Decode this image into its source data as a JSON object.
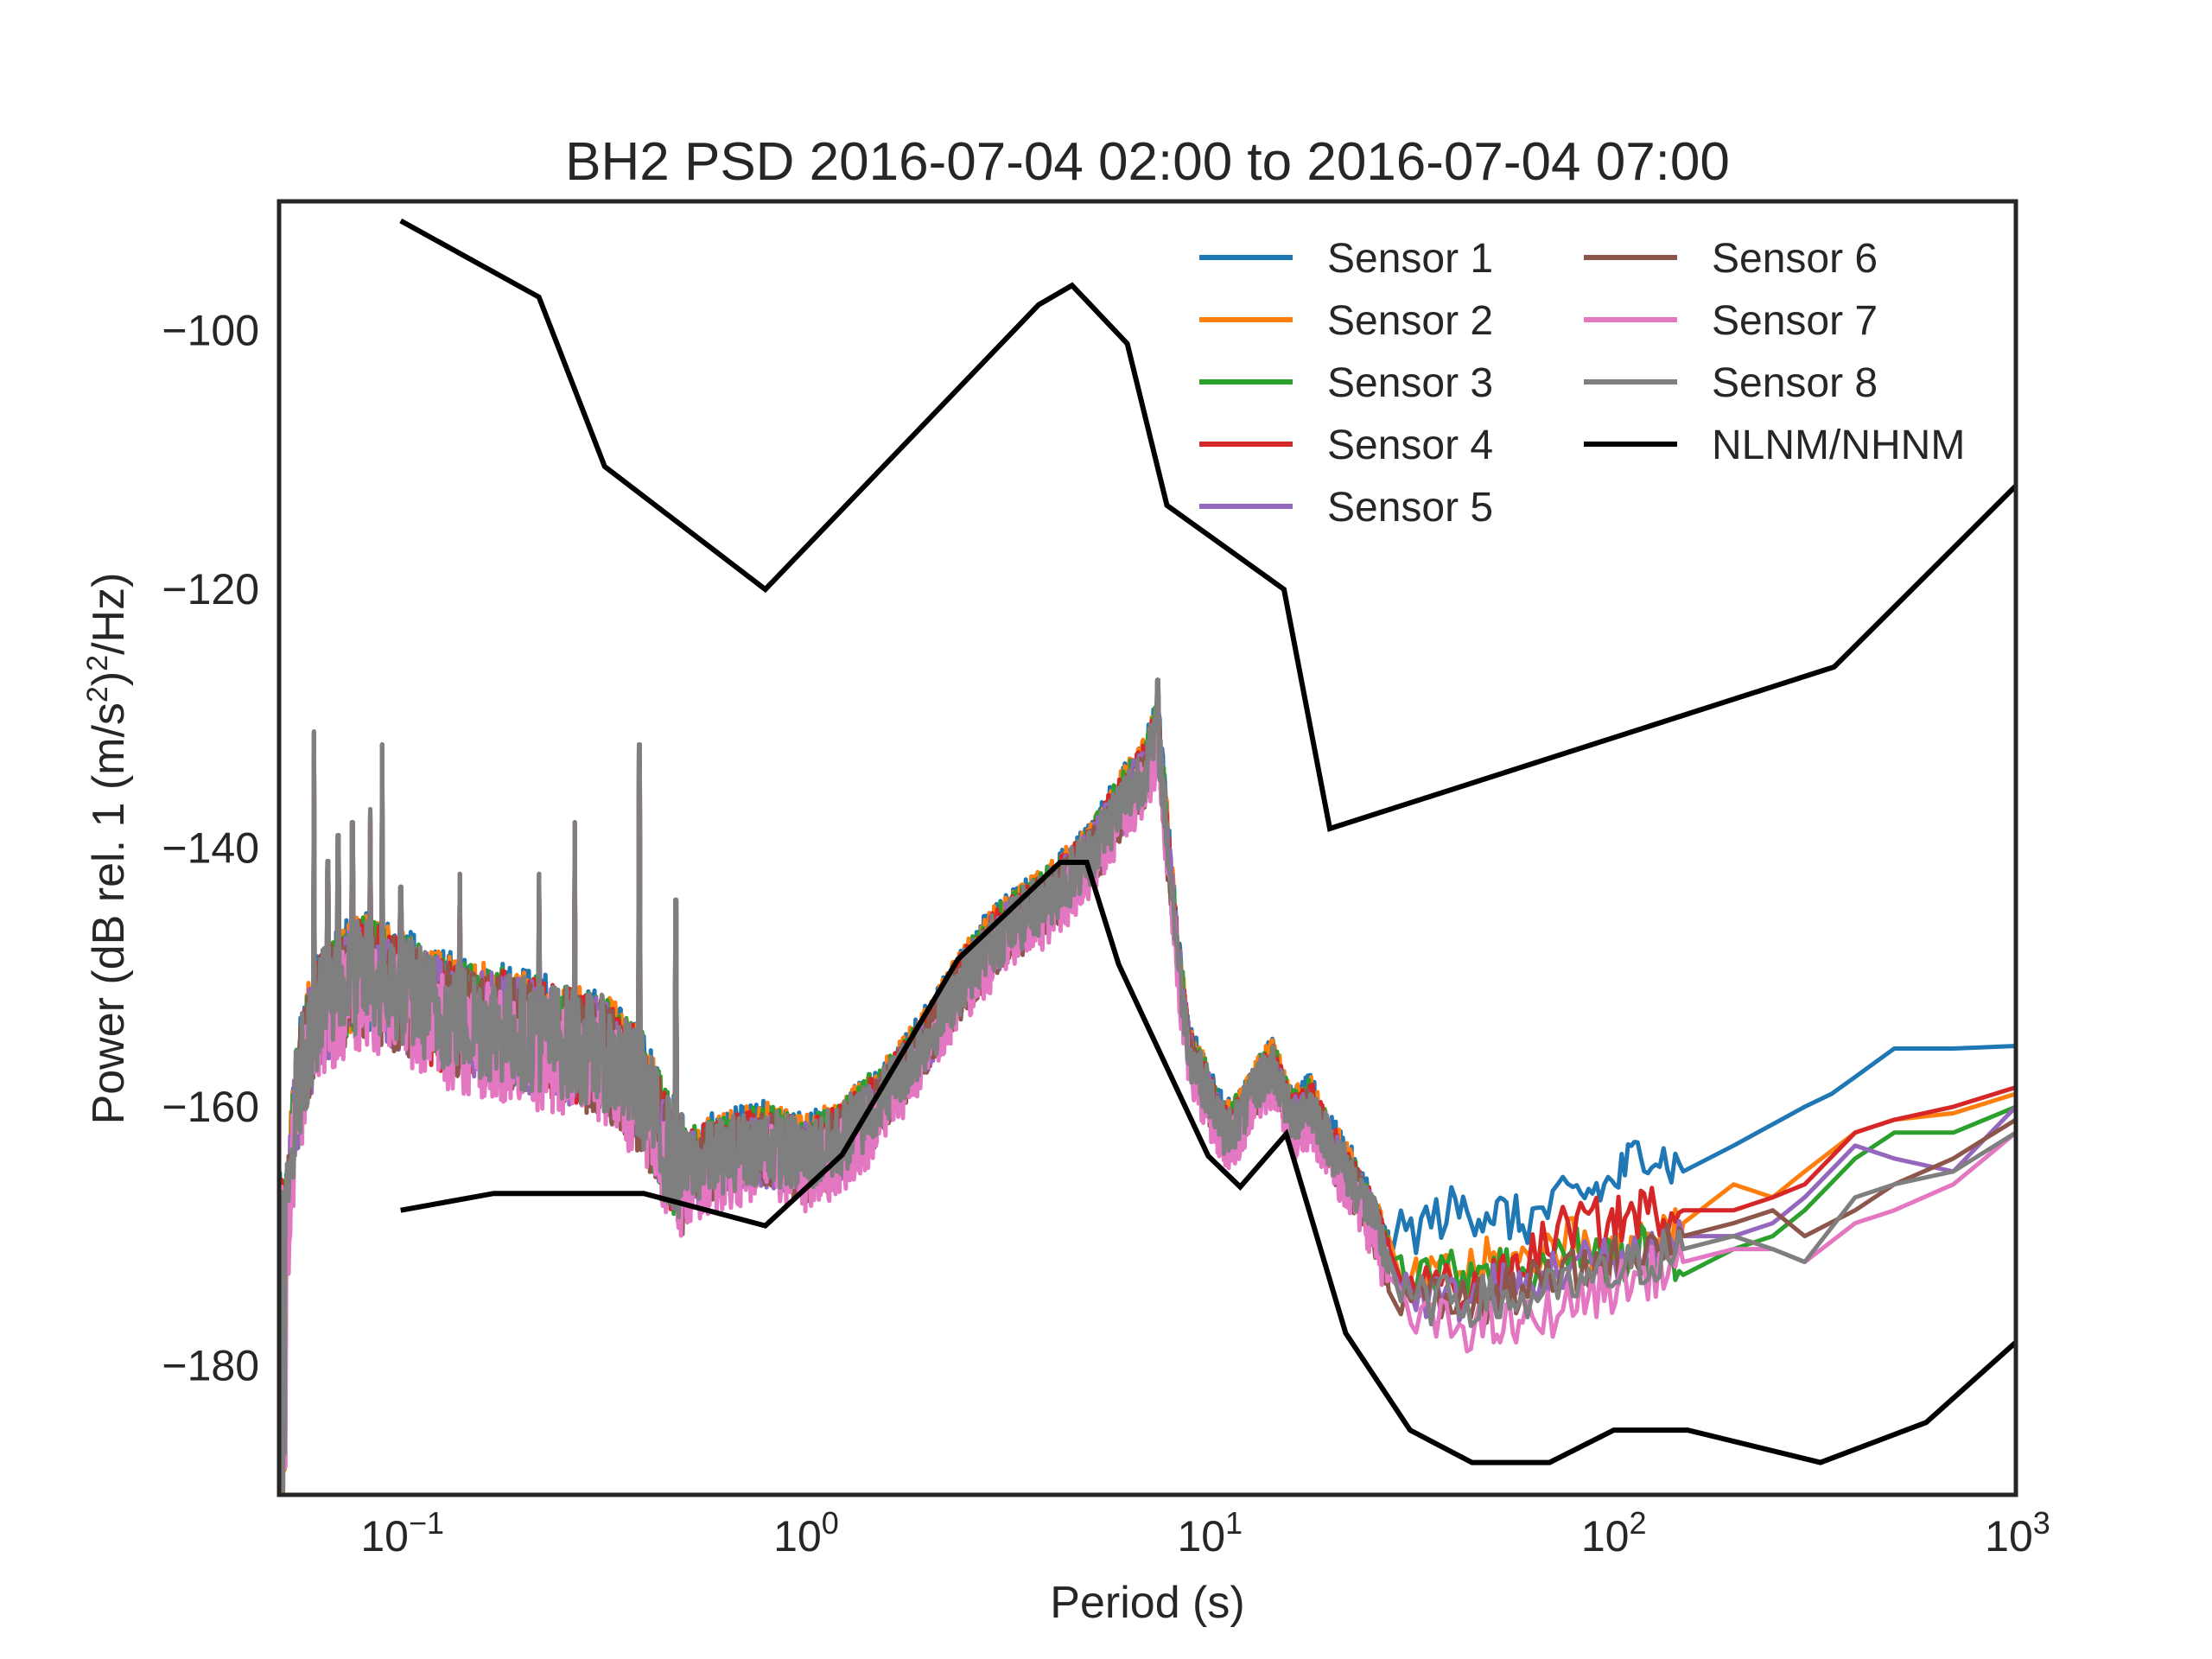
{
  "chart_data": {
    "type": "line",
    "title": "BH2 PSD 2016-07-04 02:00 to 2016-07-04 07:00",
    "xlabel": "Period (s)",
    "ylabel": "Power (dB rel. 1 (m/s²)²/Hz)",
    "x_scale": "log",
    "xlim": [
      0.05,
      1000
    ],
    "ylim": [
      -190,
      -90
    ],
    "x_ticks": [
      {
        "value": 0.1,
        "base": "10",
        "exp": "−1"
      },
      {
        "value": 1,
        "base": "10",
        "exp": "0"
      },
      {
        "value": 10,
        "base": "10",
        "exp": "1"
      },
      {
        "value": 100,
        "base": "10",
        "exp": "2"
      },
      {
        "value": 1000,
        "base": "10",
        "exp": "3"
      }
    ],
    "y_ticks": [
      {
        "value": -100,
        "label": "−100"
      },
      {
        "value": -120,
        "label": "−120"
      },
      {
        "value": -140,
        "label": "−140"
      },
      {
        "value": -160,
        "label": "−160"
      },
      {
        "value": -180,
        "label": "−180"
      }
    ],
    "grid": false,
    "legend": {
      "placement": "top-right",
      "columns": 2
    },
    "series": [
      {
        "name": "Sensor 1",
        "color": "#1f77b4",
        "offset": 0.6,
        "tail": [
          [
            30,
            -170
          ],
          [
            40,
            -168
          ],
          [
            50,
            -168
          ],
          [
            60,
            -169
          ],
          [
            80,
            -167
          ],
          [
            100,
            -166
          ],
          [
            120,
            -163
          ],
          [
            150,
            -165
          ],
          [
            200,
            -163
          ],
          [
            300,
            -160
          ],
          [
            350,
            -159
          ],
          [
            500,
            -155.5
          ],
          [
            700,
            -155.5
          ],
          [
            1000,
            -155.3
          ]
        ]
      },
      {
        "name": "Sensor 2",
        "color": "#ff7f0e",
        "offset": 0.4,
        "tail": [
          [
            30,
            -174
          ],
          [
            40,
            -173
          ],
          [
            50,
            -172
          ],
          [
            60,
            -172
          ],
          [
            80,
            -170
          ],
          [
            100,
            -172
          ],
          [
            120,
            -170
          ],
          [
            150,
            -169
          ],
          [
            200,
            -166
          ],
          [
            250,
            -167
          ],
          [
            300,
            -165
          ],
          [
            400,
            -162
          ],
          [
            500,
            -161
          ],
          [
            700,
            -160.5
          ],
          [
            1000,
            -159
          ]
        ]
      },
      {
        "name": "Sensor 3",
        "color": "#2ca02c",
        "offset": 0.2,
        "tail": [
          [
            30,
            -172
          ],
          [
            40,
            -173
          ],
          [
            50,
            -172
          ],
          [
            60,
            -173
          ],
          [
            80,
            -171
          ],
          [
            100,
            -172
          ],
          [
            120,
            -171
          ],
          [
            150,
            -173
          ],
          [
            200,
            -171
          ],
          [
            250,
            -170
          ],
          [
            300,
            -168
          ],
          [
            400,
            -164
          ],
          [
            500,
            -162
          ],
          [
            700,
            -162
          ],
          [
            1000,
            -160
          ]
        ]
      },
      {
        "name": "Sensor 4",
        "color": "#d62728",
        "offset": 0.0,
        "tail": [
          [
            30,
            -173
          ],
          [
            40,
            -174
          ],
          [
            50,
            -174
          ],
          [
            60,
            -172
          ],
          [
            80,
            -169
          ],
          [
            100,
            -169
          ],
          [
            120,
            -168
          ],
          [
            150,
            -168
          ],
          [
            200,
            -168
          ],
          [
            250,
            -167
          ],
          [
            300,
            -166
          ],
          [
            400,
            -162
          ],
          [
            500,
            -161
          ],
          [
            700,
            -160
          ],
          [
            1000,
            -158.5
          ]
        ]
      },
      {
        "name": "Sensor 5",
        "color": "#9467bd",
        "offset": -0.2,
        "tail": [
          [
            30,
            -174
          ],
          [
            40,
            -175
          ],
          [
            50,
            -174
          ],
          [
            60,
            -174
          ],
          [
            80,
            -172
          ],
          [
            100,
            -172
          ],
          [
            120,
            -171
          ],
          [
            150,
            -170
          ],
          [
            200,
            -170
          ],
          [
            250,
            -169
          ],
          [
            300,
            -167
          ],
          [
            400,
            -163
          ],
          [
            500,
            -164
          ],
          [
            700,
            -165
          ],
          [
            1000,
            -160
          ]
        ]
      },
      {
        "name": "Sensor 6",
        "color": "#8c564b",
        "offset": -0.4,
        "tail": [
          [
            30,
            -175
          ],
          [
            40,
            -175
          ],
          [
            50,
            -175
          ],
          [
            60,
            -174
          ],
          [
            80,
            -173
          ],
          [
            100,
            -172
          ],
          [
            120,
            -171
          ],
          [
            150,
            -170
          ],
          [
            200,
            -169
          ],
          [
            250,
            -168
          ],
          [
            300,
            -170
          ],
          [
            400,
            -168
          ],
          [
            500,
            -166
          ],
          [
            700,
            -164
          ],
          [
            1000,
            -161
          ]
        ]
      },
      {
        "name": "Sensor 7",
        "color": "#e377c2",
        "offset": -1.2,
        "tail": [
          [
            30,
            -176
          ],
          [
            40,
            -177
          ],
          [
            50,
            -177
          ],
          [
            60,
            -177
          ],
          [
            80,
            -175
          ],
          [
            100,
            -174
          ],
          [
            120,
            -173
          ],
          [
            150,
            -172
          ],
          [
            200,
            -171
          ],
          [
            250,
            -171
          ],
          [
            300,
            -172
          ],
          [
            400,
            -169
          ],
          [
            500,
            -168
          ],
          [
            700,
            -166
          ],
          [
            1000,
            -162
          ]
        ]
      },
      {
        "name": "Sensor 8",
        "color": "#7f7f7f",
        "offset": 0.1,
        "tail": [
          [
            30,
            -175
          ],
          [
            40,
            -175
          ],
          [
            50,
            -175
          ],
          [
            60,
            -175
          ],
          [
            80,
            -174
          ],
          [
            100,
            -173
          ],
          [
            120,
            -172
          ],
          [
            150,
            -171
          ],
          [
            200,
            -170
          ],
          [
            250,
            -171
          ],
          [
            300,
            -172
          ],
          [
            400,
            -167
          ],
          [
            500,
            -166
          ],
          [
            700,
            -165
          ],
          [
            1000,
            -162
          ]
        ]
      }
    ],
    "psd_common": [
      [
        0.05,
        -158
      ],
      [
        0.052,
        -170
      ],
      [
        0.055,
        -160
      ],
      [
        0.058,
        -156
      ],
      [
        0.062,
        -153
      ],
      [
        0.07,
        -151
      ],
      [
        0.08,
        -150
      ],
      [
        0.1,
        -151
      ],
      [
        0.13,
        -153
      ],
      [
        0.18,
        -154
      ],
      [
        0.25,
        -155
      ],
      [
        0.32,
        -156
      ],
      [
        0.4,
        -159
      ],
      [
        0.45,
        -163
      ],
      [
        0.5,
        -165
      ],
      [
        0.6,
        -164
      ],
      [
        0.8,
        -163
      ],
      [
        1.0,
        -164
      ],
      [
        1.2,
        -163
      ],
      [
        1.5,
        -160
      ],
      [
        2.0,
        -155
      ],
      [
        2.5,
        -150
      ],
      [
        3.0,
        -147
      ],
      [
        4.0,
        -144
      ],
      [
        5.0,
        -141
      ],
      [
        6.0,
        -137
      ],
      [
        7.0,
        -134
      ],
      [
        7.5,
        -131
      ],
      [
        8.0,
        -141
      ],
      [
        8.5,
        -150
      ],
      [
        9.0,
        -156
      ],
      [
        10.0,
        -159
      ],
      [
        11.0,
        -162
      ],
      [
        12.0,
        -161
      ],
      [
        13.5,
        -158
      ],
      [
        14.5,
        -157
      ],
      [
        16.0,
        -161
      ],
      [
        18.0,
        -160
      ],
      [
        20.0,
        -163
      ],
      [
        22.0,
        -165
      ],
      [
        25.0,
        -168
      ],
      [
        28.0,
        -172
      ]
    ],
    "spikes": [
      [
        0.061,
        -133
      ],
      [
        0.066,
        -143
      ],
      [
        0.07,
        -141
      ],
      [
        0.076,
        -140
      ],
      [
        0.084,
        -139
      ],
      [
        0.09,
        -134
      ],
      [
        0.1,
        -145
      ],
      [
        0.14,
        -144
      ],
      [
        0.22,
        -144
      ],
      [
        0.27,
        -140
      ],
      [
        0.39,
        -134
      ],
      [
        0.48,
        -146
      ],
      [
        7.5,
        -129
      ]
    ],
    "nlnm": [
      [
        0.1,
        -168
      ],
      [
        0.17,
        -166.7
      ],
      [
        0.4,
        -166.7
      ],
      [
        0.8,
        -169.2
      ],
      [
        1.24,
        -163.7
      ],
      [
        2.4,
        -148.6
      ],
      [
        4.3,
        -141.1
      ],
      [
        5.0,
        -141.1
      ],
      [
        6.0,
        -149
      ],
      [
        10.0,
        -163.8
      ],
      [
        12.0,
        -166.2
      ],
      [
        15.6,
        -162.1
      ],
      [
        21.9,
        -177.5
      ],
      [
        31.6,
        -185
      ],
      [
        45.0,
        -187.5
      ],
      [
        70.0,
        -187.5
      ],
      [
        101.0,
        -185
      ],
      [
        154.0,
        -185
      ],
      [
        328.0,
        -187.5
      ],
      [
        600.0,
        -184.4
      ],
      [
        1000.0,
        -178.2
      ]
    ],
    "nhnm": [
      [
        0.1,
        -91.5
      ],
      [
        0.22,
        -97.4
      ],
      [
        0.32,
        -110.5
      ],
      [
        0.8,
        -120
      ],
      [
        3.8,
        -98
      ],
      [
        4.6,
        -96.5
      ],
      [
        6.3,
        -101
      ],
      [
        7.9,
        -113.5
      ],
      [
        15.4,
        -120
      ],
      [
        20.0,
        -138.5
      ],
      [
        354.8,
        -126
      ],
      [
        1000.0,
        -112
      ]
    ],
    "nlnm_label": "NLNM/NHNM",
    "nlnm_color": "#000000"
  }
}
